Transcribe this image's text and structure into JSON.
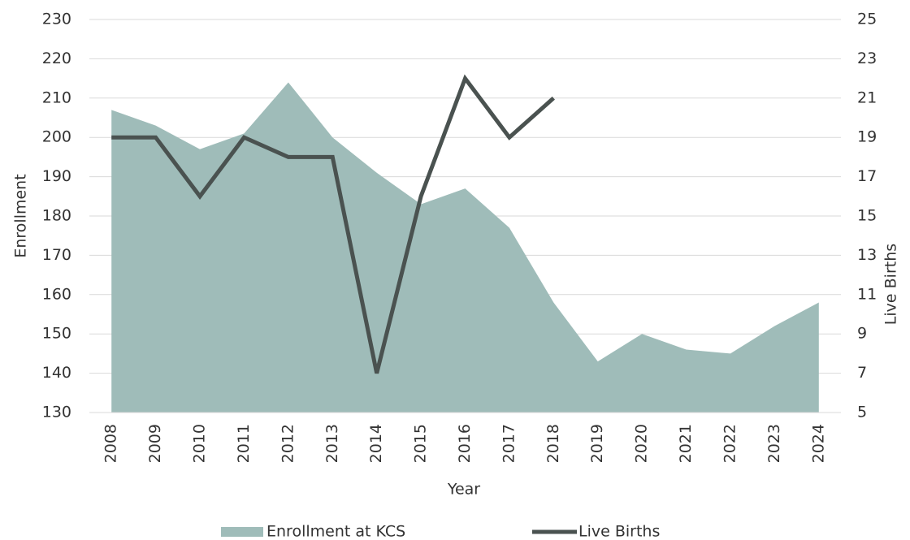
{
  "chart_data": {
    "type": "area-line",
    "x_label": "Year",
    "y_label": "Enrollment",
    "y2_label": "Live Births",
    "categories": [
      "2008",
      "2009",
      "2010",
      "2011",
      "2012",
      "2013",
      "2014",
      "2015",
      "2016",
      "2017",
      "2018",
      "2019",
      "2020",
      "2021",
      "2022",
      "2023",
      "2024"
    ],
    "series": [
      {
        "name": "Enrollment at KCS",
        "type": "area",
        "color": "#9fbcb9",
        "values": [
          207,
          203,
          197,
          201,
          214,
          200,
          191,
          183,
          187,
          177,
          158,
          143,
          150,
          146,
          145,
          152,
          158
        ]
      },
      {
        "name": "Live Births",
        "type": "line",
        "axis": "y2",
        "color": "#4a5250",
        "values": [
          19,
          19,
          16,
          19,
          18,
          18,
          7,
          16,
          22,
          19,
          21,
          null,
          null,
          null,
          null,
          null,
          null
        ]
      }
    ],
    "ylim": [
      130,
      230
    ],
    "yticks": [
      130,
      140,
      150,
      160,
      170,
      180,
      190,
      200,
      210,
      220,
      230
    ],
    "y2lim": [
      5,
      25
    ],
    "y2ticks": [
      5,
      7,
      9,
      11,
      13,
      15,
      17,
      19,
      21,
      23,
      25
    ],
    "grid": true,
    "legend": "bottom"
  }
}
